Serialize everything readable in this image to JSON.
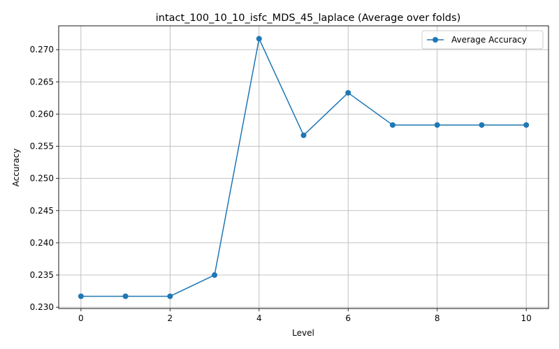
{
  "chart_data": {
    "type": "line",
    "title": "intact_100_10_10_isfc_MDS_45_laplace (Average over folds)",
    "xlabel": "Level",
    "ylabel": "Accuracy",
    "xlim": [
      -0.5,
      10.5
    ],
    "ylim": [
      0.2298,
      0.2737
    ],
    "xticks": [
      0,
      2,
      4,
      6,
      8,
      10
    ],
    "yticks": [
      0.23,
      0.235,
      0.24,
      0.245,
      0.25,
      0.255,
      0.26,
      0.265,
      0.27
    ],
    "ytick_labels": [
      "0.230",
      "0.235",
      "0.240",
      "0.245",
      "0.250",
      "0.255",
      "0.260",
      "0.265",
      "0.270"
    ],
    "grid": true,
    "legend_position": "top-right",
    "series": [
      {
        "name": "Average Accuracy",
        "color": "#1f77b4",
        "marker": "circle",
        "x": [
          0,
          1,
          2,
          3,
          4,
          5,
          6,
          7,
          8,
          9,
          10
        ],
        "y": [
          0.2317,
          0.2317,
          0.2317,
          0.235,
          0.2717,
          0.2567,
          0.2633,
          0.2583,
          0.2583,
          0.2583,
          0.2583
        ]
      }
    ]
  }
}
